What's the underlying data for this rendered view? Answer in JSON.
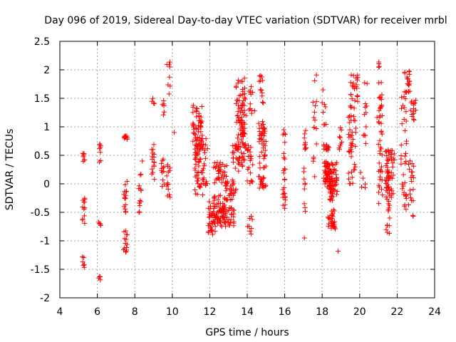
{
  "colors": {
    "marker": "#ff0000",
    "axis": "#000000",
    "grid": "#a0a0a0",
    "background": "#ffffff"
  },
  "chart_data": {
    "type": "scatter",
    "title": "Day 096 of 2019, Sidereal Day-to-day VTEC variation (SDTVAR) for receiver mrbl",
    "xlabel": "GPS time / hours",
    "ylabel": "SDTVAR / TECUs",
    "xlim": [
      4,
      24
    ],
    "ylim": [
      -2,
      2.5
    ],
    "xticks": [
      4,
      6,
      8,
      10,
      12,
      14,
      16,
      18,
      20,
      22,
      24
    ],
    "yticks": [
      -2,
      -1.5,
      -1,
      -0.5,
      0,
      0.5,
      1,
      1.5,
      2,
      2.5
    ],
    "ytick_labels": [
      "-2",
      "-1.5",
      "-1",
      "-0.5",
      "0",
      "0.5",
      "1",
      "1.5",
      "2",
      "2.5"
    ],
    "grid": true,
    "marker": "+",
    "series": [
      {
        "name": "SDTVAR",
        "clusters": [
          {
            "x": [
              5.2,
              5.35
            ],
            "y": [
              0.35,
              0.55
            ],
            "n": 8
          },
          {
            "x": [
              5.2,
              5.35
            ],
            "y": [
              -0.75,
              -0.25
            ],
            "n": 12
          },
          {
            "x": [
              5.2,
              5.35
            ],
            "y": [
              -1.48,
              -1.28
            ],
            "n": 6
          },
          {
            "x": [
              6.05,
              6.2
            ],
            "y": [
              0.35,
              0.8
            ],
            "n": 8
          },
          {
            "x": [
              6.05,
              6.2
            ],
            "y": [
              -0.75,
              -0.6
            ],
            "n": 4
          },
          {
            "x": [
              6.05,
              6.2
            ],
            "y": [
              -1.7,
              -1.6
            ],
            "n": 4
          },
          {
            "x": [
              7.4,
              7.6
            ],
            "y": [
              0.7,
              0.92
            ],
            "n": 10
          },
          {
            "x": [
              7.4,
              7.6
            ],
            "y": [
              -0.5,
              0.1
            ],
            "n": 15
          },
          {
            "x": [
              7.4,
              7.6
            ],
            "y": [
              -1.2,
              -0.75
            ],
            "n": 14
          },
          {
            "x": [
              8.2,
              8.35
            ],
            "y": [
              -0.55,
              0.2
            ],
            "n": 12
          },
          {
            "x": [
              8.9,
              9.05
            ],
            "y": [
              0.05,
              0.75
            ],
            "n": 16
          },
          {
            "x": [
              8.9,
              9.05
            ],
            "y": [
              1.4,
              1.5
            ],
            "n": 4
          },
          {
            "x": [
              9.4,
              9.6
            ],
            "y": [
              -0.1,
              0.5
            ],
            "n": 12
          },
          {
            "x": [
              9.4,
              9.6
            ],
            "y": [
              1.2,
              1.6
            ],
            "n": 6
          },
          {
            "x": [
              9.7,
              9.9
            ],
            "y": [
              -0.3,
              0.35
            ],
            "n": 14
          },
          {
            "x": [
              9.7,
              9.9
            ],
            "y": [
              1.5,
              2.15
            ],
            "n": 8
          },
          {
            "x": [
              11.1,
              11.6
            ],
            "y": [
              0.6,
              1.4
            ],
            "n": 55
          },
          {
            "x": [
              11.2,
              11.9
            ],
            "y": [
              -0.2,
              0.8
            ],
            "n": 70
          },
          {
            "x": [
              11.9,
              12.3
            ],
            "y": [
              -0.9,
              -0.3
            ],
            "n": 35
          },
          {
            "x": [
              12.2,
              12.8
            ],
            "y": [
              -0.7,
              -0.2
            ],
            "n": 45
          },
          {
            "x": [
              12.5,
              13.3
            ],
            "y": [
              -0.75,
              -0.4
            ],
            "n": 50
          },
          {
            "x": [
              12.2,
              13.0
            ],
            "y": [
              0.0,
              0.4
            ],
            "n": 35
          },
          {
            "x": [
              12.8,
              13.4
            ],
            "y": [
              -0.3,
              0.1
            ],
            "n": 30
          },
          {
            "x": [
              13.2,
              13.6
            ],
            "y": [
              0.2,
              0.7
            ],
            "n": 20
          },
          {
            "x": [
              13.4,
              13.9
            ],
            "y": [
              0.3,
              1.9
            ],
            "n": 70
          },
          {
            "x": [
              13.6,
              14.0
            ],
            "y": [
              0.6,
              1.5
            ],
            "n": 25
          },
          {
            "x": [
              14.0,
              14.3
            ],
            "y": [
              0.0,
              0.7
            ],
            "n": 20
          },
          {
            "x": [
              14.0,
              14.3
            ],
            "y": [
              -0.9,
              -0.5
            ],
            "n": 8
          },
          {
            "x": [
              14.1,
              14.4
            ],
            "y": [
              1.2,
              1.8
            ],
            "n": 12
          },
          {
            "x": [
              14.6,
              15.0
            ],
            "y": [
              -0.1,
              1.1
            ],
            "n": 60
          },
          {
            "x": [
              14.6,
              14.9
            ],
            "y": [
              1.4,
              2.05
            ],
            "n": 12
          },
          {
            "x": [
              15.9,
              16.05
            ],
            "y": [
              -0.45,
              0.95
            ],
            "n": 25
          },
          {
            "x": [
              17.0,
              17.15
            ],
            "y": [
              -0.75,
              0.95
            ],
            "n": 18
          },
          {
            "x": [
              17.5,
              17.7
            ],
            "y": [
              0.1,
              1.95
            ],
            "n": 16
          },
          {
            "x": [
              18.05,
              18.4
            ],
            "y": [
              0.0,
              0.7
            ],
            "n": 45
          },
          {
            "x": [
              18.0,
              18.2
            ],
            "y": [
              1.0,
              1.65
            ],
            "n": 8
          },
          {
            "x": [
              18.2,
              18.8
            ],
            "y": [
              -0.2,
              0.4
            ],
            "n": 60
          },
          {
            "x": [
              18.3,
              18.7
            ],
            "y": [
              -0.8,
              -0.45
            ],
            "n": 30
          },
          {
            "x": [
              18.4,
              18.6
            ],
            "y": [
              -0.3,
              0.1
            ],
            "n": 20
          },
          {
            "x": [
              18.9,
              19.05
            ],
            "y": [
              0.6,
              1.3
            ],
            "n": 8
          },
          {
            "x": [
              19.4,
              19.8
            ],
            "y": [
              0.0,
              1.2
            ],
            "n": 40
          },
          {
            "x": [
              19.5,
              19.9
            ],
            "y": [
              1.3,
              1.95
            ],
            "n": 25
          },
          {
            "x": [
              20.2,
              20.4
            ],
            "y": [
              0.7,
              1.8
            ],
            "n": 12
          },
          {
            "x": [
              20.1,
              20.3
            ],
            "y": [
              -0.2,
              0.1
            ],
            "n": 4
          },
          {
            "x": [
              20.9,
              21.05
            ],
            "y": [
              1.0,
              1.3
            ],
            "n": 4
          },
          {
            "x": [
              21.0,
              21.2
            ],
            "y": [
              0.1,
              2.15
            ],
            "n": 35
          },
          {
            "x": [
              21.0,
              21.25
            ],
            "y": [
              -0.35,
              0.3
            ],
            "n": 10
          },
          {
            "x": [
              21.4,
              21.6
            ],
            "y": [
              -0.9,
              -0.3
            ],
            "n": 12
          },
          {
            "x": [
              21.35,
              21.85
            ],
            "y": [
              -0.3,
              0.6
            ],
            "n": 60
          },
          {
            "x": [
              22.2,
              22.5
            ],
            "y": [
              -0.5,
              1.7
            ],
            "n": 35
          },
          {
            "x": [
              22.4,
              22.7
            ],
            "y": [
              1.6,
              2.0
            ],
            "n": 20
          },
          {
            "x": [
              22.6,
              22.9
            ],
            "y": [
              -0.6,
              0.5
            ],
            "n": 20
          },
          {
            "x": [
              22.7,
              23.0
            ],
            "y": [
              1.1,
              1.5
            ],
            "n": 15
          }
        ],
        "outliers": [
          [
            18.85,
            -1.18
          ],
          [
            15.95,
            0.95
          ],
          [
            17.05,
            -0.95
          ],
          [
            19.0,
            0.7
          ],
          [
            10.1,
            0.9
          ],
          [
            8.4,
            0.4
          ],
          [
            20.05,
            0.2
          ],
          [
            21.6,
            -0.6
          ]
        ]
      }
    ]
  }
}
